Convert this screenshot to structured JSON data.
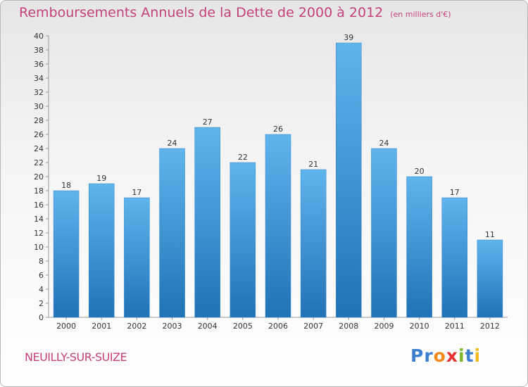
{
  "title": "Remboursements Annuels de la Dette de 2000 à 2012",
  "unit": "(en milliers d'€)",
  "location": "NEUILLY-SUR-SUIZE",
  "logo": {
    "text": "Proxiti",
    "letter_colors": [
      "#3a7fd0",
      "#3a7fd0",
      "#f08a1c",
      "#e8312f",
      "#7ab829",
      "#3a7fd0",
      "#f0b81c"
    ]
  },
  "colors": {
    "bar_top": "#60b4ec",
    "bar_bottom": "#2172b6",
    "title": "#c4417a"
  },
  "chart_data": {
    "type": "bar",
    "categories": [
      "2000",
      "2001",
      "2002",
      "2003",
      "2004",
      "2005",
      "2006",
      "2007",
      "2008",
      "2009",
      "2010",
      "2011",
      "2012"
    ],
    "values": [
      18,
      19,
      17,
      24,
      27,
      22,
      26,
      21,
      39,
      24,
      20,
      17,
      11
    ],
    "ylim": [
      0,
      40
    ],
    "yticks": [
      0,
      2,
      4,
      6,
      8,
      10,
      12,
      14,
      16,
      18,
      20,
      22,
      24,
      26,
      28,
      30,
      32,
      34,
      36,
      38,
      40
    ],
    "grid": false,
    "data_labels": true
  }
}
